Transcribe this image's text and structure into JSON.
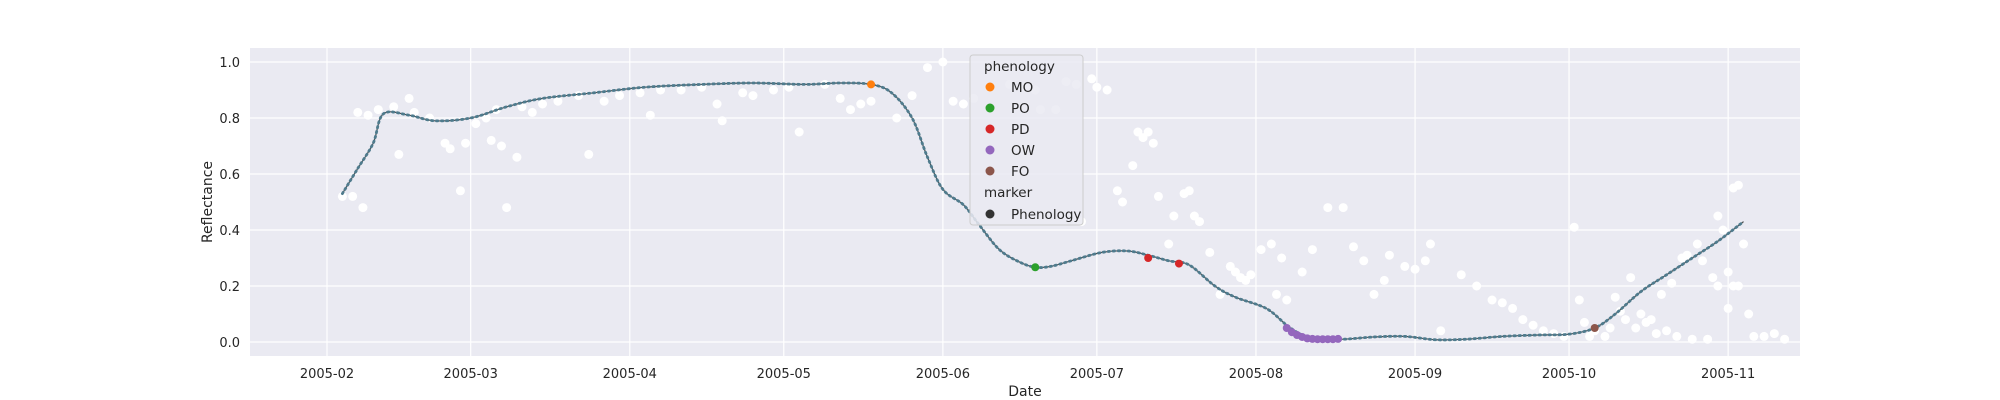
{
  "chart_data": {
    "type": "scatter",
    "title": "",
    "xlabel": "Date",
    "ylabel": "Reflectance",
    "x_ticks": [
      "2005-02",
      "2005-03",
      "2005-04",
      "2005-05",
      "2005-06",
      "2005-07",
      "2005-08",
      "2005-09",
      "2005-10",
      "2005-11"
    ],
    "xlim": [
      "2005-01-17",
      "2005-11-15"
    ],
    "ylim": [
      -0.05,
      1.05
    ],
    "y_ticks": [
      "0.0",
      "0.2",
      "0.4",
      "0.6",
      "0.8",
      "1.0"
    ],
    "grid": true,
    "legend_placement": "upper-center",
    "colors": {
      "background": "#eaeaf2",
      "grid": "#ffffff",
      "observations": "#ffffff",
      "fitted_line": "#4c4c4c",
      "fitted_markers": "#4f7b8d",
      "MO": "#ff7f0e",
      "PO": "#2ca02c",
      "PD": "#d62728",
      "OW": "#9467bd",
      "FO": "#8c564b",
      "Phenology": "#333333"
    },
    "legend": {
      "hue_title": "phenology",
      "hue_entries": [
        "MO",
        "PO",
        "PD",
        "OW",
        "FO"
      ],
      "marker_title": "marker",
      "marker_entries": [
        "Phenology"
      ]
    },
    "fitted_curve": [
      [
        "2005-02-04",
        0.53
      ],
      [
        "2005-02-07",
        0.62
      ],
      [
        "2005-02-10",
        0.71
      ],
      [
        "2005-02-12",
        0.815
      ],
      [
        "2005-02-17",
        0.81
      ],
      [
        "2005-02-22",
        0.79
      ],
      [
        "2005-03-01",
        0.8
      ],
      [
        "2005-03-08",
        0.84
      ],
      [
        "2005-03-15",
        0.87
      ],
      [
        "2005-03-25",
        0.89
      ],
      [
        "2005-04-04",
        0.91
      ],
      [
        "2005-04-15",
        0.92
      ],
      [
        "2005-04-25",
        0.925
      ],
      [
        "2005-05-05",
        0.92
      ],
      [
        "2005-05-12",
        0.925
      ],
      [
        "2005-05-18",
        0.92
      ],
      [
        "2005-05-22",
        0.89
      ],
      [
        "2005-05-26",
        0.8
      ],
      [
        "2005-05-29",
        0.66
      ],
      [
        "2005-06-01",
        0.545
      ],
      [
        "2005-06-05",
        0.49
      ],
      [
        "2005-06-08",
        0.42
      ],
      [
        "2005-06-12",
        0.33
      ],
      [
        "2005-06-16",
        0.285
      ],
      [
        "2005-06-19",
        0.267
      ],
      [
        "2005-06-22",
        0.27
      ],
      [
        "2005-06-26",
        0.29
      ],
      [
        "2005-07-02",
        0.32
      ],
      [
        "2005-07-07",
        0.325
      ],
      [
        "2005-07-11",
        0.31
      ],
      [
        "2005-07-15",
        0.29
      ],
      [
        "2005-07-19",
        0.275
      ],
      [
        "2005-07-24",
        0.2
      ],
      [
        "2005-07-28",
        0.16
      ],
      [
        "2005-08-03",
        0.12
      ],
      [
        "2005-08-07",
        0.06
      ],
      [
        "2005-08-10",
        0.025
      ],
      [
        "2005-08-13",
        0.012
      ],
      [
        "2005-08-18",
        0.01
      ],
      [
        "2005-08-24",
        0.018
      ],
      [
        "2005-08-30",
        0.02
      ],
      [
        "2005-09-05",
        0.008
      ],
      [
        "2005-09-11",
        0.01
      ],
      [
        "2005-09-18",
        0.02
      ],
      [
        "2005-09-25",
        0.025
      ],
      [
        "2005-10-01",
        0.028
      ],
      [
        "2005-10-06",
        0.05
      ],
      [
        "2005-10-10",
        0.1
      ],
      [
        "2005-10-15",
        0.18
      ],
      [
        "2005-10-20",
        0.24
      ],
      [
        "2005-10-25",
        0.3
      ],
      [
        "2005-10-30",
        0.36
      ],
      [
        "2005-11-04",
        0.43
      ]
    ],
    "observations": [
      [
        "2005-02-04",
        0.52
      ],
      [
        "2005-02-06",
        0.52
      ],
      [
        "2005-02-07",
        0.82
      ],
      [
        "2005-02-08",
        0.48
      ],
      [
        "2005-02-09",
        0.81
      ],
      [
        "2005-02-11",
        0.83
      ],
      [
        "2005-02-14",
        0.84
      ],
      [
        "2005-02-15",
        0.67
      ],
      [
        "2005-02-17",
        0.87
      ],
      [
        "2005-02-18",
        0.82
      ],
      [
        "2005-02-21",
        0.8
      ],
      [
        "2005-02-24",
        0.71
      ],
      [
        "2005-02-25",
        0.69
      ],
      [
        "2005-02-27",
        0.54
      ],
      [
        "2005-02-28",
        0.71
      ],
      [
        "2005-03-02",
        0.78
      ],
      [
        "2005-03-04",
        0.8
      ],
      [
        "2005-03-05",
        0.72
      ],
      [
        "2005-03-06",
        0.83
      ],
      [
        "2005-03-07",
        0.7
      ],
      [
        "2005-03-08",
        0.48
      ],
      [
        "2005-03-10",
        0.66
      ],
      [
        "2005-03-11",
        0.84
      ],
      [
        "2005-03-13",
        0.82
      ],
      [
        "2005-03-15",
        0.85
      ],
      [
        "2005-03-18",
        0.86
      ],
      [
        "2005-03-22",
        0.88
      ],
      [
        "2005-03-24",
        0.67
      ],
      [
        "2005-03-27",
        0.86
      ],
      [
        "2005-03-30",
        0.88
      ],
      [
        "2005-04-03",
        0.89
      ],
      [
        "2005-04-05",
        0.81
      ],
      [
        "2005-04-07",
        0.9
      ],
      [
        "2005-04-11",
        0.9
      ],
      [
        "2005-04-15",
        0.91
      ],
      [
        "2005-04-18",
        0.85
      ],
      [
        "2005-04-19",
        0.79
      ],
      [
        "2005-04-23",
        0.89
      ],
      [
        "2005-04-25",
        0.88
      ],
      [
        "2005-04-29",
        0.9
      ],
      [
        "2005-05-02",
        0.91
      ],
      [
        "2005-05-04",
        0.75
      ],
      [
        "2005-05-09",
        0.92
      ],
      [
        "2005-05-12",
        0.87
      ],
      [
        "2005-05-14",
        0.83
      ],
      [
        "2005-05-16",
        0.85
      ],
      [
        "2005-05-18",
        0.86
      ],
      [
        "2005-05-23",
        0.8
      ],
      [
        "2005-05-26",
        0.88
      ],
      [
        "2005-05-29",
        0.98
      ],
      [
        "2005-06-01",
        1.0
      ],
      [
        "2005-06-03",
        0.86
      ],
      [
        "2005-06-05",
        0.85
      ],
      [
        "2005-06-07",
        0.87
      ],
      [
        "2005-06-10",
        0.91
      ],
      [
        "2005-06-14",
        0.92
      ],
      [
        "2005-06-17",
        0.91
      ],
      [
        "2005-06-19",
        0.9
      ],
      [
        "2005-06-20",
        0.83
      ],
      [
        "2005-06-23",
        0.83
      ],
      [
        "2005-06-25",
        0.93
      ],
      [
        "2005-06-27",
        0.92
      ],
      [
        "2005-06-28",
        0.43
      ],
      [
        "2005-06-30",
        0.94
      ],
      [
        "2005-07-01",
        0.91
      ],
      [
        "2005-07-03",
        0.9
      ],
      [
        "2005-07-05",
        0.54
      ],
      [
        "2005-07-06",
        0.5
      ],
      [
        "2005-07-08",
        0.63
      ],
      [
        "2005-07-09",
        0.75
      ],
      [
        "2005-07-10",
        0.73
      ],
      [
        "2005-07-11",
        0.75
      ],
      [
        "2005-07-12",
        0.71
      ],
      [
        "2005-07-13",
        0.52
      ],
      [
        "2005-07-15",
        0.35
      ],
      [
        "2005-07-16",
        0.45
      ],
      [
        "2005-07-18",
        0.53
      ],
      [
        "2005-07-19",
        0.54
      ],
      [
        "2005-07-20",
        0.45
      ],
      [
        "2005-07-21",
        0.43
      ],
      [
        "2005-07-23",
        0.32
      ],
      [
        "2005-07-25",
        0.17
      ],
      [
        "2005-07-27",
        0.27
      ],
      [
        "2005-07-28",
        0.25
      ],
      [
        "2005-07-29",
        0.23
      ],
      [
        "2005-07-30",
        0.22
      ],
      [
        "2005-07-31",
        0.24
      ],
      [
        "2005-08-02",
        0.33
      ],
      [
        "2005-08-04",
        0.35
      ],
      [
        "2005-08-05",
        0.17
      ],
      [
        "2005-08-06",
        0.3
      ],
      [
        "2005-08-07",
        0.15
      ],
      [
        "2005-08-10",
        0.25
      ],
      [
        "2005-08-12",
        0.33
      ],
      [
        "2005-08-15",
        0.48
      ],
      [
        "2005-08-18",
        0.48
      ],
      [
        "2005-08-20",
        0.34
      ],
      [
        "2005-08-22",
        0.29
      ],
      [
        "2005-08-24",
        0.17
      ],
      [
        "2005-08-26",
        0.22
      ],
      [
        "2005-08-27",
        0.31
      ],
      [
        "2005-08-30",
        0.27
      ],
      [
        "2005-09-01",
        0.26
      ],
      [
        "2005-09-03",
        0.29
      ],
      [
        "2005-09-04",
        0.35
      ],
      [
        "2005-09-06",
        0.04
      ],
      [
        "2005-09-10",
        0.24
      ],
      [
        "2005-09-13",
        0.2
      ],
      [
        "2005-09-16",
        0.15
      ],
      [
        "2005-09-18",
        0.14
      ],
      [
        "2005-09-20",
        0.12
      ],
      [
        "2005-09-22",
        0.08
      ],
      [
        "2005-09-24",
        0.06
      ],
      [
        "2005-09-26",
        0.04
      ],
      [
        "2005-09-28",
        0.03
      ],
      [
        "2005-09-30",
        0.02
      ],
      [
        "2005-10-02",
        0.41
      ],
      [
        "2005-10-03",
        0.15
      ],
      [
        "2005-10-04",
        0.07
      ],
      [
        "2005-10-06",
        0.04
      ],
      [
        "2005-10-08",
        0.02
      ],
      [
        "2005-10-10",
        0.16
      ],
      [
        "2005-10-12",
        0.08
      ],
      [
        "2005-10-14",
        0.05
      ],
      [
        "2005-10-16",
        0.07
      ],
      [
        "2005-10-18",
        0.03
      ],
      [
        "2005-10-20",
        0.04
      ],
      [
        "2005-10-22",
        0.02
      ],
      [
        "2005-10-25",
        0.01
      ],
      [
        "2005-10-28",
        0.01
      ],
      [
        "2005-10-30",
        0.2
      ],
      [
        "2005-10-31",
        0.4
      ],
      [
        "2005-11-01",
        0.12
      ],
      [
        "2005-11-02",
        0.2
      ],
      [
        "2005-11-03",
        0.2
      ],
      [
        "2005-11-05",
        0.1
      ],
      [
        "2005-11-06",
        0.02
      ],
      [
        "2005-11-08",
        0.02
      ],
      [
        "2005-11-10",
        0.03
      ],
      [
        "2005-11-12",
        0.01
      ],
      [
        "2005-10-05",
        0.02
      ],
      [
        "2005-10-09",
        0.05
      ],
      [
        "2005-10-11",
        0.11
      ],
      [
        "2005-10-13",
        0.23
      ],
      [
        "2005-10-15",
        0.1
      ],
      [
        "2005-10-17",
        0.08
      ],
      [
        "2005-10-19",
        0.17
      ],
      [
        "2005-10-21",
        0.21
      ],
      [
        "2005-10-23",
        0.3
      ],
      [
        "2005-10-24",
        0.31
      ],
      [
        "2005-10-26",
        0.35
      ],
      [
        "2005-10-27",
        0.29
      ],
      [
        "2005-10-29",
        0.23
      ],
      [
        "2005-10-30",
        0.45
      ],
      [
        "2005-11-01",
        0.25
      ],
      [
        "2005-11-02",
        0.55
      ],
      [
        "2005-11-03",
        0.56
      ],
      [
        "2005-11-04",
        0.35
      ]
    ],
    "phenology_points": [
      {
        "phase": "MO",
        "x": [
          "2005-05-18"
        ],
        "y": [
          0.92
        ]
      },
      {
        "phase": "PO",
        "x": [
          "2005-06-19"
        ],
        "y": [
          0.267
        ]
      },
      {
        "phase": "PD",
        "x": [
          "2005-07-11",
          "2005-07-17"
        ],
        "y": [
          0.3,
          0.28
        ]
      },
      {
        "phase": "OW",
        "x": [
          "2005-08-07",
          "2005-08-08",
          "2005-08-09",
          "2005-08-10",
          "2005-08-11",
          "2005-08-12",
          "2005-08-13",
          "2005-08-14",
          "2005-08-15",
          "2005-08-16",
          "2005-08-17"
        ],
        "y": [
          0.05,
          0.035,
          0.025,
          0.018,
          0.013,
          0.011,
          0.01,
          0.01,
          0.01,
          0.01,
          0.011
        ]
      },
      {
        "phase": "FO",
        "x": [
          "2005-10-06"
        ],
        "y": [
          0.05
        ]
      }
    ]
  }
}
